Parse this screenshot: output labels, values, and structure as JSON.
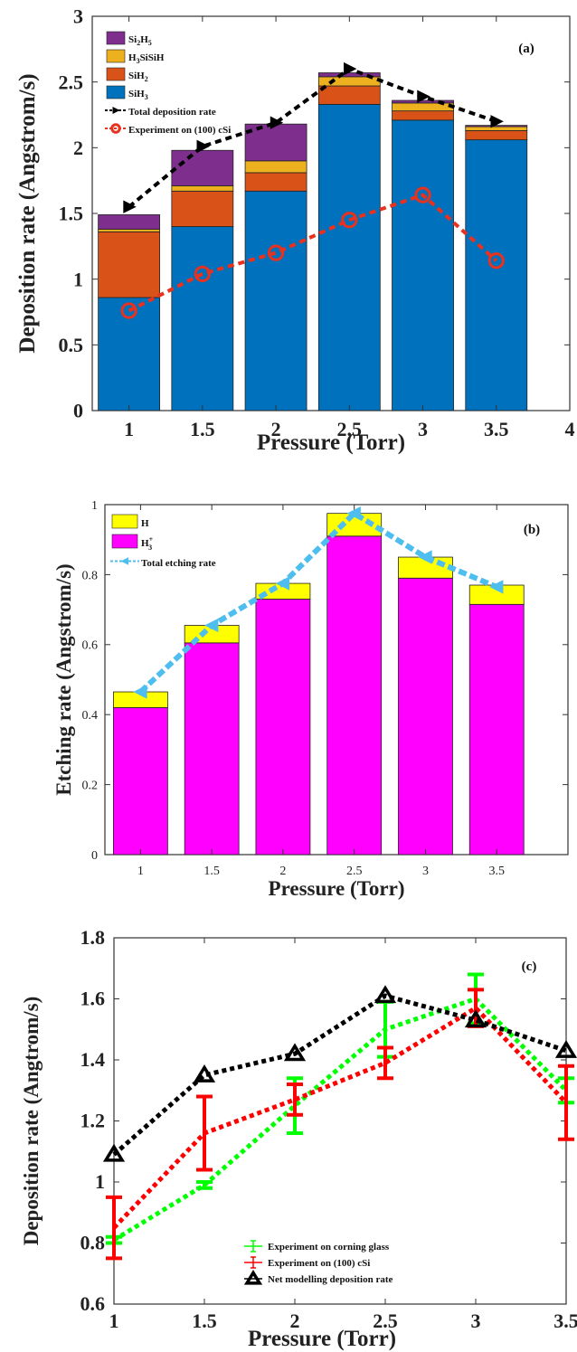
{
  "colors": {
    "si2h5": "#7e2f8e",
    "h3sisih": "#edb120",
    "sih2": "#d95319",
    "sih3": "#0072bd",
    "h": "#ffff00",
    "h3plus": "#ff00ff",
    "etch_line": "#4dbeee",
    "glass": "#00ff00",
    "csi": "#ff0000",
    "model": "#000000"
  },
  "chart_data": [
    {
      "type": "bar",
      "stacked": true,
      "panel_label": "(a)",
      "xlabel": "Pressure (Torr)",
      "ylabel": "Deposition rate (Angstrom/s)",
      "xlim": [
        0.75,
        4
      ],
      "ylim": [
        0,
        3
      ],
      "xticks": [
        "1",
        "1.5",
        "2",
        "2.5",
        "3",
        "3.5",
        "4"
      ],
      "yticks": [
        "0",
        "0.5",
        "1",
        "1.5",
        "2",
        "2.5",
        "3"
      ],
      "x": [
        1,
        1.5,
        2,
        2.5,
        3,
        3.5
      ],
      "bar_series": [
        {
          "name": "Si2H5",
          "name_parts": [
            [
              "Si",
              "n"
            ],
            [
              "2",
              "sub"
            ],
            [
              "H",
              "n"
            ],
            [
              "5",
              "sub"
            ]
          ],
          "color": "#7e2f8e",
          "values": [
            0.11,
            0.27,
            0.28,
            0.03,
            0.02,
            0.01
          ]
        },
        {
          "name": "H3SiSiH",
          "name_parts": [
            [
              "H",
              "n"
            ],
            [
              "3",
              "sub"
            ],
            [
              "SiSiH",
              "n"
            ]
          ],
          "color": "#edb120",
          "values": [
            0.02,
            0.04,
            0.09,
            0.07,
            0.06,
            0.03
          ]
        },
        {
          "name": "SiH2",
          "name_parts": [
            [
              "SiH",
              "n"
            ],
            [
              "2",
              "sub"
            ]
          ],
          "color": "#d95319",
          "values": [
            0.5,
            0.27,
            0.14,
            0.14,
            0.07,
            0.07
          ]
        },
        {
          "name": "SiH3",
          "name_parts": [
            [
              "SiH",
              "n"
            ],
            [
              "3",
              "sub"
            ]
          ],
          "color": "#0072bd",
          "values": [
            0.86,
            1.4,
            1.67,
            2.33,
            2.21,
            2.06
          ]
        }
      ],
      "line_series": [
        {
          "name": "Total deposition rate",
          "color": "#000000",
          "marker": "triangle-right",
          "y": [
            1.55,
            2.01,
            2.19,
            2.6,
            2.39,
            2.2
          ]
        },
        {
          "name": "Experiment on (100) cSi",
          "color": "#e8311e",
          "marker": "circle",
          "y": [
            0.76,
            1.04,
            1.2,
            1.45,
            1.64,
            1.14
          ]
        }
      ],
      "legend_position": "top-left"
    },
    {
      "type": "bar",
      "stacked": true,
      "panel_label": "(b)",
      "xlabel": "Pressure (Torr)",
      "ylabel": "Etching rate (Angstrom/s)",
      "xlim": [
        0.75,
        4
      ],
      "ylim": [
        0,
        1
      ],
      "xticks": [
        "1",
        "1.5",
        "2",
        "2.5",
        "3",
        "3.5"
      ],
      "yticks": [
        "0",
        "0.2",
        "0.4",
        "0.6",
        "0.8",
        "1"
      ],
      "x": [
        1,
        1.5,
        2,
        2.5,
        3,
        3.5
      ],
      "bar_series": [
        {
          "name": "H",
          "name_parts": [
            [
              "H",
              "n"
            ]
          ],
          "color": "#ffff00",
          "values": [
            0.045,
            0.05,
            0.045,
            0.065,
            0.06,
            0.055
          ]
        },
        {
          "name": "H3+",
          "name_parts": [
            [
              "H",
              "n"
            ],
            [
              "+",
              "sup"
            ],
            [
              "3",
              "sub"
            ]
          ],
          "color": "#ff00ff",
          "values": [
            0.42,
            0.605,
            0.73,
            0.91,
            0.79,
            0.715
          ]
        }
      ],
      "line_series": [
        {
          "name": "Total etching rate",
          "color": "#4dbeee",
          "marker": "triangle-left",
          "y": [
            0.465,
            0.655,
            0.775,
            0.975,
            0.85,
            0.765
          ]
        }
      ],
      "legend_position": "top-left"
    },
    {
      "type": "line",
      "panel_label": "(c)",
      "xlabel": "Pressure (Torr)",
      "ylabel": "Deposition rate (Angtrom/s)",
      "xlim": [
        1,
        3.5
      ],
      "ylim": [
        0.6,
        1.8
      ],
      "xticks": [
        "1",
        "1.5",
        "2",
        "2.5",
        "3",
        "3.5"
      ],
      "yticks": [
        "0.6",
        "0.8",
        "1",
        "1.2",
        "1.4",
        "1.6",
        "1.8"
      ],
      "x": [
        1,
        1.5,
        2,
        2.5,
        3,
        3.5
      ],
      "series": [
        {
          "name": "Experiment on corning glass",
          "color": "#00ff00",
          "y": [
            0.81,
            0.99,
            1.25,
            1.5,
            1.6,
            1.3
          ],
          "err": [
            0.01,
            0.01,
            0.09,
            0.09,
            0.08,
            0.04
          ]
        },
        {
          "name": "Experiment on (100) cSi",
          "color": "#ff0000",
          "y": [
            0.85,
            1.16,
            1.27,
            1.39,
            1.57,
            1.26
          ],
          "err": [
            0.1,
            0.12,
            0.05,
            0.05,
            0.06,
            0.12
          ]
        },
        {
          "name": "Net modelling deposition rate",
          "color": "#000000",
          "marker": "triangle-up",
          "y": [
            1.09,
            1.35,
            1.42,
            1.61,
            1.53,
            1.43
          ]
        }
      ],
      "legend_position": "bottom-right"
    }
  ]
}
